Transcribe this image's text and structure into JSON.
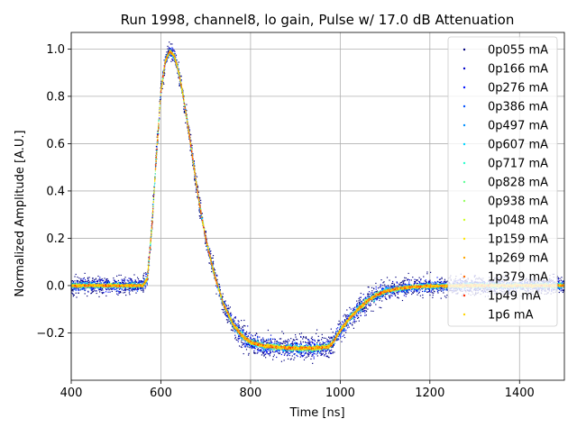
{
  "chart_data": {
    "type": "scatter",
    "title": "Run 1998, channel8, lo gain, Pulse w/ 17.0 dB Attenuation",
    "xlabel": "Time [ns]",
    "ylabel": "Normalized Amplitude [A.U.]",
    "xlim": [
      400,
      1500
    ],
    "ylim": [
      -0.4,
      1.07
    ],
    "xticks": [
      400,
      600,
      800,
      1000,
      1200,
      1400
    ],
    "xtick_labels": [
      "400",
      "600",
      "800",
      "1000",
      "1200",
      "1400"
    ],
    "yticks": [
      -0.2,
      0.0,
      0.2,
      0.4,
      0.6,
      0.8,
      1.0
    ],
    "ytick_labels": [
      "−0.2",
      "0.0",
      "0.2",
      "0.4",
      "0.6",
      "0.8",
      "1.0"
    ],
    "grid": true,
    "legend_position": "top-right",
    "pulse_shape": {
      "x": [
        400,
        560,
        570,
        580,
        590,
        600,
        610,
        620,
        630,
        640,
        650,
        660,
        670,
        680,
        690,
        700,
        720,
        740,
        760,
        780,
        800,
        830,
        860,
        900,
        940,
        970,
        980,
        990,
        1000,
        1020,
        1040,
        1060,
        1080,
        1100,
        1130,
        1160,
        1200,
        1300,
        1500
      ],
      "y": [
        0.0,
        0.0,
        0.03,
        0.25,
        0.55,
        0.82,
        0.95,
        0.99,
        0.97,
        0.9,
        0.8,
        0.68,
        0.55,
        0.42,
        0.3,
        0.2,
        0.04,
        -0.08,
        -0.16,
        -0.21,
        -0.24,
        -0.255,
        -0.26,
        -0.265,
        -0.265,
        -0.26,
        -0.25,
        -0.22,
        -0.19,
        -0.14,
        -0.1,
        -0.065,
        -0.04,
        -0.025,
        -0.012,
        -0.006,
        -0.002,
        0.0,
        0.0
      ]
    },
    "series": [
      {
        "name": "0p055 mA",
        "color": "#00007f",
        "noise": 0.03
      },
      {
        "name": "0p166 mA",
        "color": "#0000c8",
        "noise": 0.022
      },
      {
        "name": "0p276 mA",
        "color": "#0010ff",
        "noise": 0.017
      },
      {
        "name": "0p386 mA",
        "color": "#0050ff",
        "noise": 0.013
      },
      {
        "name": "0p497 mA",
        "color": "#0090ff",
        "noise": 0.01
      },
      {
        "name": "0p607 mA",
        "color": "#00d4ff",
        "noise": 0.008
      },
      {
        "name": "0p717 mA",
        "color": "#29ffce",
        "noise": 0.007
      },
      {
        "name": "0p828 mA",
        "color": "#60ff97",
        "noise": 0.006
      },
      {
        "name": "0p938 mA",
        "color": "#97ff60",
        "noise": 0.005
      },
      {
        "name": "1p048 mA",
        "color": "#ceff29",
        "noise": 0.005
      },
      {
        "name": "1p159 mA",
        "color": "#ffe600",
        "noise": 0.004
      },
      {
        "name": "1p269 mA",
        "color": "#ffa700",
        "noise": 0.004
      },
      {
        "name": "1p379 mA",
        "color": "#ff6800",
        "noise": 0.003
      },
      {
        "name": "1p49 mA",
        "color": "#ff2900",
        "noise": 0.003
      },
      {
        "name": "1p6 mA",
        "color": "#ffd400",
        "noise": 0.003
      }
    ]
  }
}
